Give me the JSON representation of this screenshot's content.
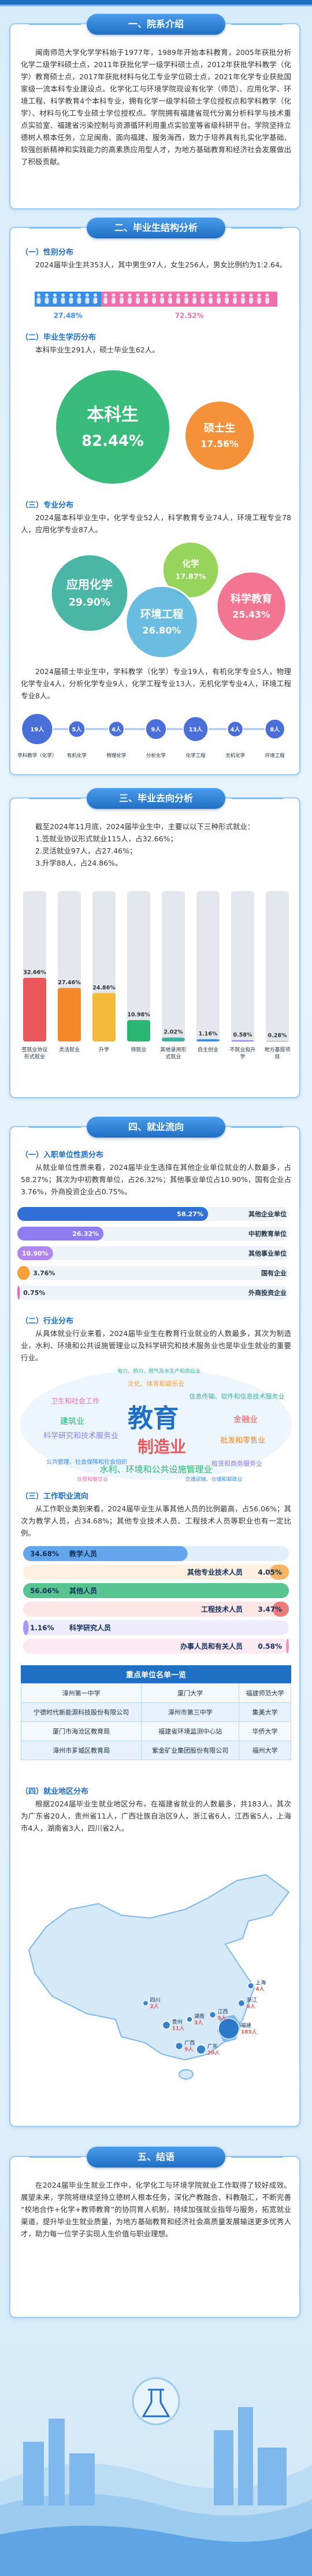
{
  "intro": {
    "title": "一、院系介绍",
    "text": "闽南师范大学化学学科始于1977年，1989年开始本科教育，2005年获批分析化学二级学科硕士点，2011年获批化学一级学科硕士点，2012年获批学科教学（化学）教育硕士点，2017年获批材料与化工专业学位硕士点，2021年化学专业获批国家级一流本科专业建设点。化学化工与环境学院现设有化学（师范）、应用化学、环境工程、科学教育4个本科专业，拥有化学一级学科硕士学位授权点和学科教学（化学）、材料与化工专业硕士学位授权点。学院拥有福建省现代分离分析科学与技术重点实验室、福建省污染控制与资源循环利用重点实验室等省级科研平台。学院坚持立德树人根本任务，立足闽南、面向福建、服务海西，致力于培养具有扎实化学基础、较强创新精神和实践能力的高素质应用型人才，为地方基础教育和经济社会发展做出了积极贡献。"
  },
  "structure": {
    "title": "二、毕业生结构分析",
    "gender_heading": "（一）性别分布",
    "gender_text": "2024届毕业生共353人，其中男生97人，女生256人，男女比例约为1:2.64。",
    "degree_heading": "（二）毕业生学历分布",
    "degree_text": "本科毕业生291人，硕士毕业生62人。",
    "major_heading": "（三）专业分布",
    "major_text": "2024届本科毕业生中，化学专业52人，科学教育专业74人，环境工程专业78人，应用化学专业87人。",
    "master_text": "2024届硕士毕业生中，学科教学（化学）专业19人，有机化学专业5人，物理化学专业4人，分析化学专业9人，化学工程专业13人，无机化学专业4人，环境工程专业8人。"
  },
  "destination": {
    "title": "三、毕业去向分析",
    "text": "截至2024年11月底，2024届毕业生中，主要以以下三种形式就业：",
    "items": [
      "1.签就业协议形式就业115人，占32.66%；",
      "2.灵活就业97人，占27.46%；",
      "3.升学88人，占24.86%。"
    ]
  },
  "flow": {
    "title": "四、就业流向",
    "unit_heading": "（一）入职单位性质分布",
    "unit_text": "从就业单位性质来看，2024届毕业生选择在其他企业单位就业的人数最多，占58.27%；其次为中初教育单位，占26.32%；其他事业单位占10.90%，国有企业占3.76%，外商投资企业占0.75%。",
    "industry_heading": "（二）行业分布",
    "industry_text": "从具体就业行业来看，2024届毕业生在教育行业就业的人数最多，其次为制造业，水利、环境和公共设施管理业以及科学研究和技术服务业也是毕业生就业的重要行业。",
    "words": [
      "教育",
      "制造业",
      "水利、环境和公共设施管理业",
      "科学研究和技术服务业",
      "信息传输、软件和信息技术服务业",
      "批发和零售业",
      "卫生和社会工作",
      "公共管理、社会保障和社会组织",
      "租赁和商务服务业",
      "建筑业",
      "金融业",
      "文化、体育和娱乐业",
      "交通运输、仓储和邮政业",
      "住宿和餐饮业",
      "电力、热力、燃气及水生产和供应业"
    ],
    "occupation_heading": "（三）工作职业流向",
    "occupation_text": "从工作职业类别来看，2024届毕业生从事其他人员的比例最高，占56.06%；其次为教学人员，占34.68%；其他专业技术人员、工程技术人员等职业也有一定比例。",
    "table": {
      "title": "重点单位名单一览",
      "rows": [
        [
          "漳州第一中学",
          "厦门大学",
          "福建师范大学"
        ],
        [
          "宁德时代新能源科技股份有限公司",
          "漳州市第三中学",
          "集美大学"
        ],
        [
          "厦门市海沧区教育局",
          "福建省环境监测中心站",
          "华侨大学"
        ],
        [
          "漳州市芗城区教育局",
          "紫金矿业集团股份有限公司",
          "福州大学"
        ]
      ]
    },
    "region_heading": "（四）就业地区分布",
    "region_text": "根据2024届毕业生就业地区分布，在福建省就业的人数最多，共183人，其次为广东省20人，贵州省11人，广西壮族自治区9人，浙江省6人，江西省5人，上海市4人，湖南省3人，四川省2人。"
  },
  "conclusion": {
    "title": "五、结语",
    "text": "在2024届毕业生就业工作中，化学化工与环境学院就业工作取得了较好成效。展望未来，学院将继续坚持立德树人根本任务，深化产教融合、科教融汇，不断完善“校地合作+化学+教师教育”的协同育人机制，持续加强就业指导与服务，拓宽就业渠道，提升毕业生就业质量，为地方基础教育和经济社会高质量发展输送更多优秀人才，助力每一位学子实现人生价值与职业理想。"
  },
  "chart_data": [
    {
      "type": "stacked-bar",
      "values": [
        27.48,
        72.52
      ],
      "value_labels": [
        "27.48%",
        "72.52%"
      ],
      "colors": [
        "#3a8ee6",
        "#f06ea9"
      ]
    },
    {
      "type": "bubble",
      "categories": [
        "本科生",
        "硕士生"
      ],
      "values": [
        82.44,
        17.56
      ],
      "value_labels": [
        "82.44%",
        "17.56%"
      ],
      "colors": [
        "#2bb673",
        "#f5892a"
      ]
    },
    {
      "type": "bubble",
      "categories": [
        "化学",
        "科学教育",
        "环境工程",
        "应用化学"
      ],
      "values": [
        17.87,
        25.43,
        26.8,
        29.9
      ],
      "value_labels": [
        "17.87%",
        "25.43%",
        "26.80%",
        "29.90%"
      ],
      "colors": [
        "#8fd14f",
        "#f26b8a",
        "#5fb8de",
        "#3db2a0"
      ]
    },
    {
      "type": "dot-row",
      "categories": [
        "学科教学（化学）",
        "有机化学",
        "物理化学",
        "分析化学",
        "化学工程",
        "无机化学",
        "环境工程"
      ],
      "values": [
        19,
        5,
        4,
        9,
        13,
        4,
        8
      ],
      "value_labels": [
        "19人",
        "5人",
        "4人",
        "9人",
        "13人",
        "4人",
        "8人"
      ],
      "color": "#4a6fd8"
    },
    {
      "type": "bar",
      "categories": [
        "签就业协议形式就业",
        "灵活就业",
        "升学",
        "待就业",
        "其他录用形式就业",
        "自主创业",
        "不就业拟升学",
        "地方基层项目"
      ],
      "values": [
        32.66,
        27.46,
        24.86,
        10.98,
        2.02,
        1.16,
        0.58,
        0.28
      ],
      "value_labels": [
        "32.66%",
        "27.46%",
        "24.86%",
        "10.98%",
        "2.02%",
        "1.16%",
        "0.58%",
        "0.28%"
      ],
      "colors": [
        "#e8585a",
        "#f5892a",
        "#f5b93a",
        "#2bb673",
        "#3db2a0",
        "#3a8ee6",
        "#8e7cf0",
        "#f06ea9"
      ]
    },
    {
      "type": "hbar",
      "categories": [
        "其他企业单位",
        "中初教育单位",
        "其他事业单位",
        "国有企业",
        "外商投资企业"
      ],
      "values": [
        58.27,
        26.32,
        10.9,
        3.76,
        0.75
      ],
      "value_labels": [
        "58.27%",
        "26.32%",
        "10.90%",
        "3.76%",
        "0.75%"
      ],
      "colors": [
        "#2f6fd6",
        "#8e7cf0",
        "#b086f0",
        "#f5a13a",
        "#e86ab8"
      ]
    },
    {
      "type": "bar-list",
      "categories": [
        "教学人员",
        "其他专业技术人员",
        "其他人员",
        "工程技术人员",
        "科学研究人员",
        "办事人员和有关人员"
      ],
      "values": [
        34.68,
        4.05,
        56.06,
        3.47,
        1.16,
        0.58
      ],
      "value_labels": [
        "34.68%",
        "4.05%",
        "56.06%",
        "3.47%",
        "1.16%",
        "0.58%"
      ],
      "colors": [
        "#3a8ee6",
        "#f5a13a",
        "#2bb673",
        "#e8585a",
        "#8e7cf0",
        "#f06ea9"
      ]
    },
    {
      "type": "map",
      "categories": [
        "福建",
        "广东",
        "贵州",
        "广西",
        "浙江",
        "江西",
        "上海",
        "湖南",
        "四川"
      ],
      "values": [
        183,
        20,
        11,
        9,
        6,
        5,
        4,
        3,
        2
      ],
      "value_labels": [
        "183人",
        "20人",
        "11人",
        "9人",
        "6人",
        "5人",
        "4人",
        "3人",
        "2人"
      ],
      "color": "#1f6fc4"
    }
  ]
}
